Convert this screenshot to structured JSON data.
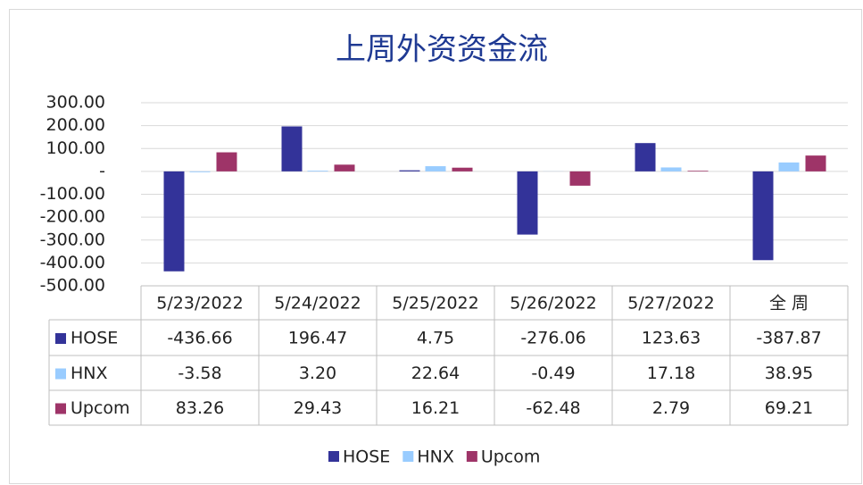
{
  "chart_data": {
    "type": "bar",
    "title": "上周外资资金流",
    "categories": [
      "5/23/2022",
      "5/24/2022",
      "5/25/2022",
      "5/26/2022",
      "5/27/2022",
      "全 周"
    ],
    "series": [
      {
        "name": "HOSE",
        "color": "#333399",
        "values": [
          -436.66,
          196.47,
          4.75,
          -276.06,
          123.63,
          -387.87
        ],
        "value_labels": [
          "-436.66",
          "196.47",
          "4.75",
          "-276.06",
          "123.63",
          "-387.87"
        ]
      },
      {
        "name": "HNX",
        "color": "#99ccff",
        "values": [
          -3.58,
          3.2,
          22.64,
          -0.49,
          17.18,
          38.95
        ],
        "value_labels": [
          "-3.58",
          "3.20",
          "22.64",
          "-0.49",
          "17.18",
          "38.95"
        ]
      },
      {
        "name": "Upcom",
        "color": "#9e3468",
        "values": [
          83.26,
          29.43,
          16.21,
          -62.48,
          2.79,
          69.21
        ],
        "value_labels": [
          "83.26",
          "29.43",
          "16.21",
          "-62.48",
          "2.79",
          "69.21"
        ]
      }
    ],
    "ylim": [
      -500,
      300
    ],
    "yticks": [
      {
        "value": 300,
        "label": "300.00"
      },
      {
        "value": 200,
        "label": "200.00"
      },
      {
        "value": 100,
        "label": "100.00"
      },
      {
        "value": 0,
        "label": "-"
      },
      {
        "value": -100,
        "label": "-100.00"
      },
      {
        "value": -200,
        "label": "-200.00"
      },
      {
        "value": -300,
        "label": "-300.00"
      },
      {
        "value": -400,
        "label": "-400.00"
      },
      {
        "value": -500,
        "label": "-500.00"
      }
    ],
    "grid": true,
    "legend": "bottom"
  }
}
